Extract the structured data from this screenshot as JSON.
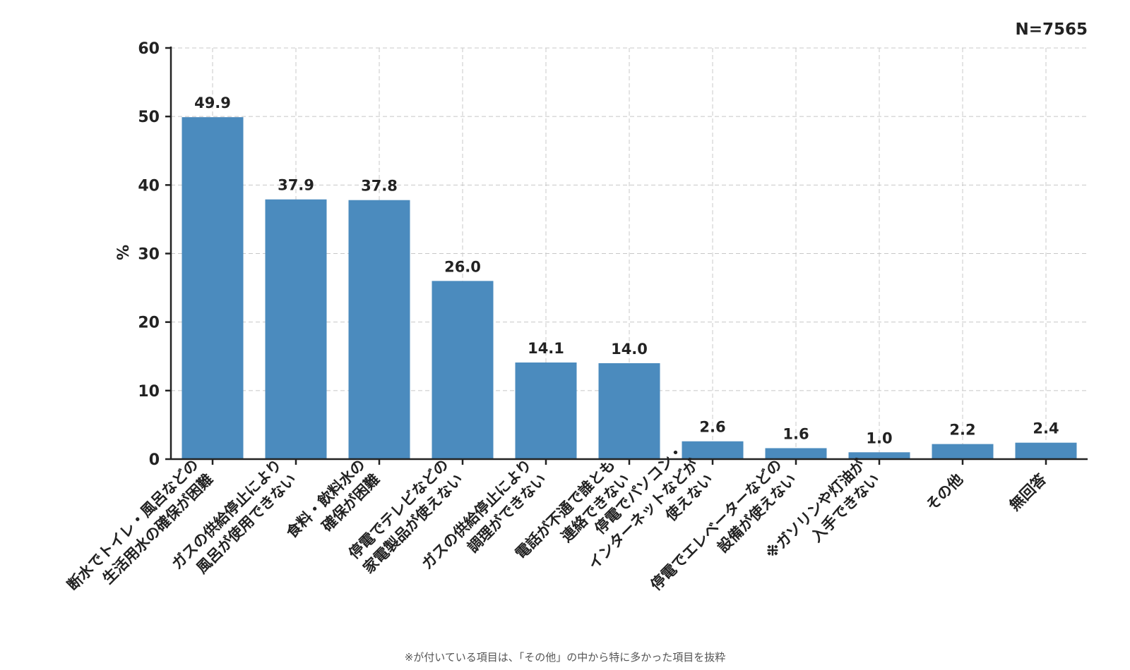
{
  "chart_data": {
    "type": "bar",
    "categories": [
      "断水でトイレ・風呂などの\n生活用水の確保が困難",
      "ガスの供給停止により\n風呂が使用できない",
      "食料・飲料水の\n確保が困難",
      "停電でテレビなどの\n家電製品が使えない",
      "ガスの供給停止により\n調理ができない",
      "電話が不通で誰とも\n連絡できない",
      "停電でパソコン・\nインターネットなどが\n使えない",
      "停電でエレベーターなどの\n設備が使えない",
      "※ガソリンや灯油が\n入手できない",
      "その他",
      "無回答"
    ],
    "values": [
      49.9,
      37.9,
      37.8,
      26.0,
      14.1,
      14.0,
      2.6,
      1.6,
      1.0,
      2.2,
      2.4
    ],
    "value_labels": [
      "49.9",
      "37.9",
      "37.8",
      "26.0",
      "14.1",
      "14.0",
      "2.6",
      "1.6",
      "1.0",
      "2.2",
      "2.4"
    ],
    "ylabel": "%",
    "ylim": [
      0,
      60
    ],
    "yticks": [
      "0",
      "10",
      "20",
      "30",
      "40",
      "50",
      "60"
    ],
    "grid": true,
    "bar_color": "#4b8bbe",
    "sample_size": "N=7565",
    "footnote": "※が付いている項目は、「その他」の中から特に多かった項目を抜粋"
  }
}
